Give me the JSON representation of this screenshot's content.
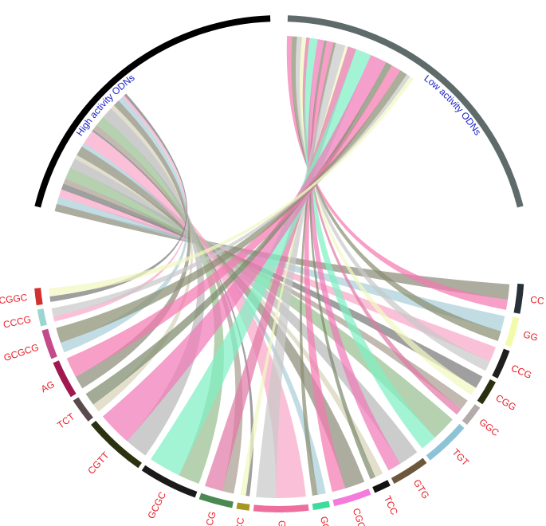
{
  "arcs": [
    {
      "label": "High activity ODNs",
      "color": "#000000"
    },
    {
      "label": "Low activity ODNs",
      "color": "#5f6b6b"
    }
  ],
  "groups": [
    {
      "label": "CC",
      "color": "#263238"
    },
    {
      "label": "GG",
      "color": "#f2fbaa"
    },
    {
      "label": "CCG",
      "color": "#1e1e1e"
    },
    {
      "label": "CGG",
      "color": "#2a300f"
    },
    {
      "label": "GGC",
      "color": "#b3aaaa"
    },
    {
      "label": "TGT",
      "color": "#8cc3d6"
    },
    {
      "label": "GTG",
      "color": "#6b573c"
    },
    {
      "label": "TCC",
      "color": "#111111"
    },
    {
      "label": "CGCGT",
      "color": "#f47bdc"
    },
    {
      "label": "GCC",
      "color": "#3ddc9c"
    },
    {
      "label": "GCGT",
      "color": "#ee6e9e"
    },
    {
      "label": "CCC",
      "color": "#a6981e"
    },
    {
      "label": "TCGCG",
      "color": "#4a8a52"
    },
    {
      "label": "GCGC",
      "color": "#1a1a1a"
    },
    {
      "label": "CGTT",
      "color": "#2b3210"
    },
    {
      "label": "TCT",
      "color": "#5a4a4e"
    },
    {
      "label": "AG",
      "color": "#a1184f"
    },
    {
      "label": "GCGCG",
      "color": "#c44a8a"
    },
    {
      "label": "CCCG",
      "color": "#9bd6d2"
    },
    {
      "label": "CGGC",
      "color": "#d0302e"
    }
  ]
}
